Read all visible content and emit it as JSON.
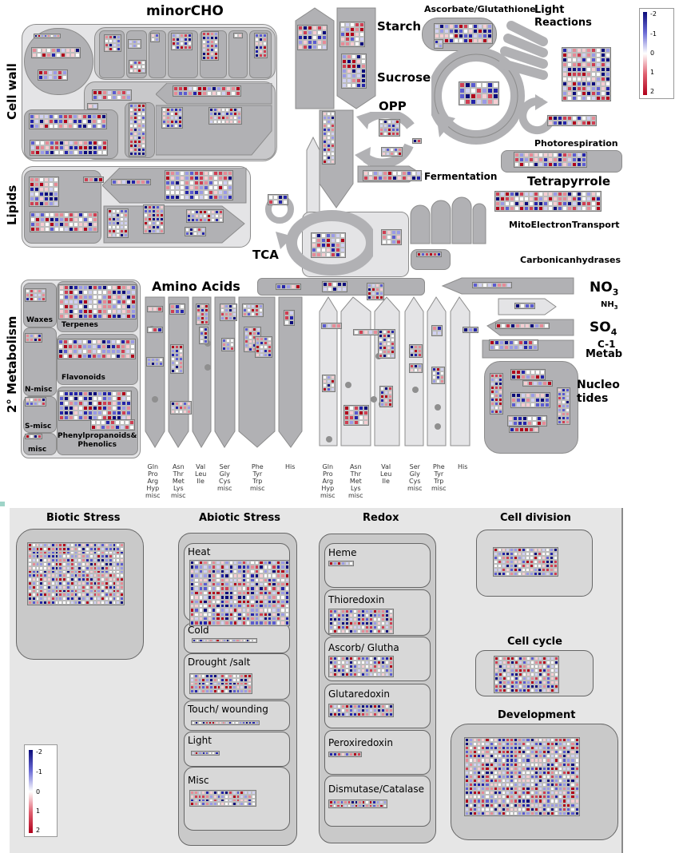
{
  "overview": {
    "minor_cho": "minorCHO",
    "cell_wall": "Cell wall",
    "lipids": "Lipids",
    "starch": "Starch",
    "sucrose": "Sucrose",
    "ascorbate_glutathione": "Ascorbate/Glutathione",
    "light_reactions": "Light\nReactions",
    "opp": "OPP",
    "photorespiration": "Photorespiration",
    "fermentation": "Fermentation",
    "tetrapyrrole": "Tetrapyrrole",
    "mito_electron_transport": "MitoElectronTransport",
    "tca": "TCA",
    "carbonic_anhydrases": "Carbonicanhydrases",
    "amino_acids": "Amino Acids",
    "no3": "NO",
    "no3_sub": "3",
    "nh3": "NH",
    "nh3_sub": "3",
    "so4": "SO",
    "so4_sub": "4",
    "c1": "C-1",
    "c1_metab": "Metab",
    "nucleotides": "Nucleo\ntides",
    "secondary_metabolism": "2° Metabolism",
    "waxes": "Waxes",
    "terpenes": "Terpenes",
    "n_misc": "N-misc",
    "flavonoids": "Flavonoids",
    "s_misc": "S-misc",
    "phenylpropanoids": "Phenylpropanoids&\nPhenolics",
    "misc": "misc",
    "aa_labels_left": [
      "Gln\nPro\nArg\nHyp\nmisc",
      "Asn\nThr\nMet\nLys\nmisc",
      "Val\nLeu\nIle",
      "Ser\nGly\nCys\nmisc",
      "Phe\nTyr\nTrp\nmisc",
      "His"
    ],
    "aa_labels_right": [
      "Gln\nPro\nArg\nHyp\nmisc",
      "Asn\nThr\nMet\nLys\nmisc",
      "Val\nLeu\nIle",
      "Ser\nGly\nCys\nmisc",
      "Phe\nTyr\nTrp\nmisc",
      "His"
    ]
  },
  "stress": {
    "biotic": "Biotic Stress",
    "abiotic": "Abiotic Stress",
    "redox": "Redox",
    "cell_division": "Cell division",
    "cell_cycle": "Cell cycle",
    "development": "Development",
    "abiotic_items": [
      "Heat",
      "Cold",
      "Drought /salt",
      "Touch/ wounding",
      "Light",
      "Misc"
    ],
    "redox_items": [
      "Heme",
      "Thioredoxin",
      "Ascorb/ Glutha",
      "Glutaredoxin",
      "Peroxiredoxin",
      "Dismutase/Catalase"
    ]
  },
  "color_scale": {
    "ticks": [
      "-2",
      "-1",
      "0",
      "1",
      "2"
    ],
    "low_color": "#0b0b7a",
    "mid_color": "#ffffff",
    "high_color": "#b0001a"
  }
}
